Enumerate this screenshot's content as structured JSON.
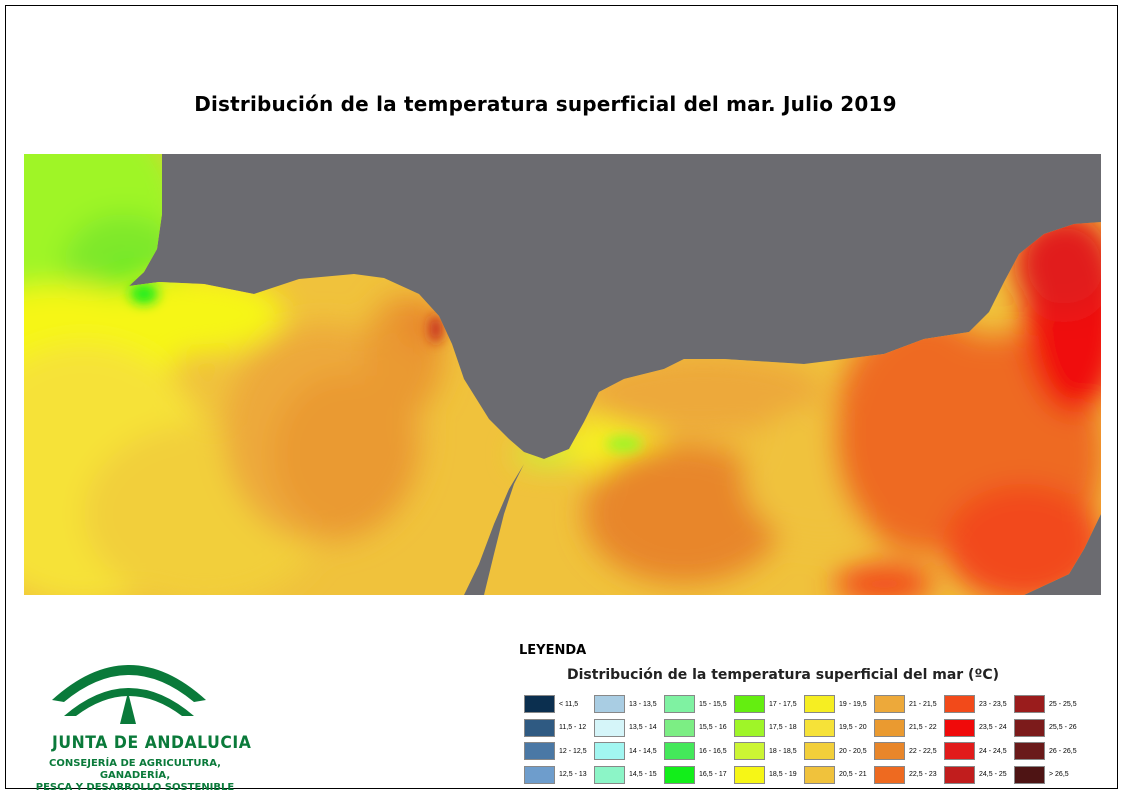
{
  "map": {
    "title": "Distribución de la temperatura superficial del mar. Julio 2019",
    "land_color": "#6b6b70"
  },
  "legend": {
    "heading": "LEYENDA",
    "subtitle": "Distribución de la temperatura superficial del mar (ºC)",
    "classes": [
      {
        "label": "< 11,5",
        "color": "#0b2f4f"
      },
      {
        "label": "11,5 - 12",
        "color": "#2f5a82"
      },
      {
        "label": "12 - 12,5",
        "color": "#4a78a5"
      },
      {
        "label": "12,5 - 13",
        "color": "#6e9dcc"
      },
      {
        "label": "13 - 13,5",
        "color": "#a9cde3"
      },
      {
        "label": "13,5 - 14",
        "color": "#d5f5f9"
      },
      {
        "label": "14 - 14,5",
        "color": "#a2f6f1"
      },
      {
        "label": "14,5 - 15",
        "color": "#8cf5c7"
      },
      {
        "label": "15 - 15,5",
        "color": "#7ff2a2"
      },
      {
        "label": "15,5 - 16",
        "color": "#7cee84"
      },
      {
        "label": "16 - 16,5",
        "color": "#44e85a"
      },
      {
        "label": "16,5 - 17",
        "color": "#12ee1a"
      },
      {
        "label": "17 - 17,5",
        "color": "#64ee10"
      },
      {
        "label": "17,5 - 18",
        "color": "#9ff528"
      },
      {
        "label": "18 - 18,5",
        "color": "#ccf534"
      },
      {
        "label": "18,5 - 19",
        "color": "#f6f616"
      },
      {
        "label": "19 - 19,5",
        "color": "#f6ee22"
      },
      {
        "label": "19,5 - 20",
        "color": "#f6e238"
      },
      {
        "label": "20 - 20,5",
        "color": "#f2cf3a"
      },
      {
        "label": "20,5 - 21",
        "color": "#f0c23c"
      },
      {
        "label": "21 - 21,5",
        "color": "#eda93a"
      },
      {
        "label": "21,5 - 22",
        "color": "#ea9a30"
      },
      {
        "label": "22 - 22,5",
        "color": "#e8862a"
      },
      {
        "label": "22,5 - 23",
        "color": "#ee6a20"
      },
      {
        "label": "23 - 23,5",
        "color": "#f24a1a"
      },
      {
        "label": "23,5 - 24",
        "color": "#f00a0a"
      },
      {
        "label": "24 - 24,5",
        "color": "#e11b1b"
      },
      {
        "label": "24,5 - 25",
        "color": "#c11d1d"
      },
      {
        "label": "25 - 25,5",
        "color": "#9a1c1c"
      },
      {
        "label": "25,5 - 26",
        "color": "#7c1b1b"
      },
      {
        "label": "26 - 26,5",
        "color": "#6a1a1a"
      },
      {
        "label": "> 26,5",
        "color": "#4e1414"
      }
    ]
  },
  "logo": {
    "org_name": "JUNTA DE ANDALUCIA",
    "dept_line1": "CONSEJERÍA DE AGRICULTURA, GANADERÍA,",
    "dept_line2": "PESCA Y DESARROLLO SOSTENIBLE",
    "color": "#0a7a3a",
    "icon": "junta-de-andalucia-emblem"
  }
}
